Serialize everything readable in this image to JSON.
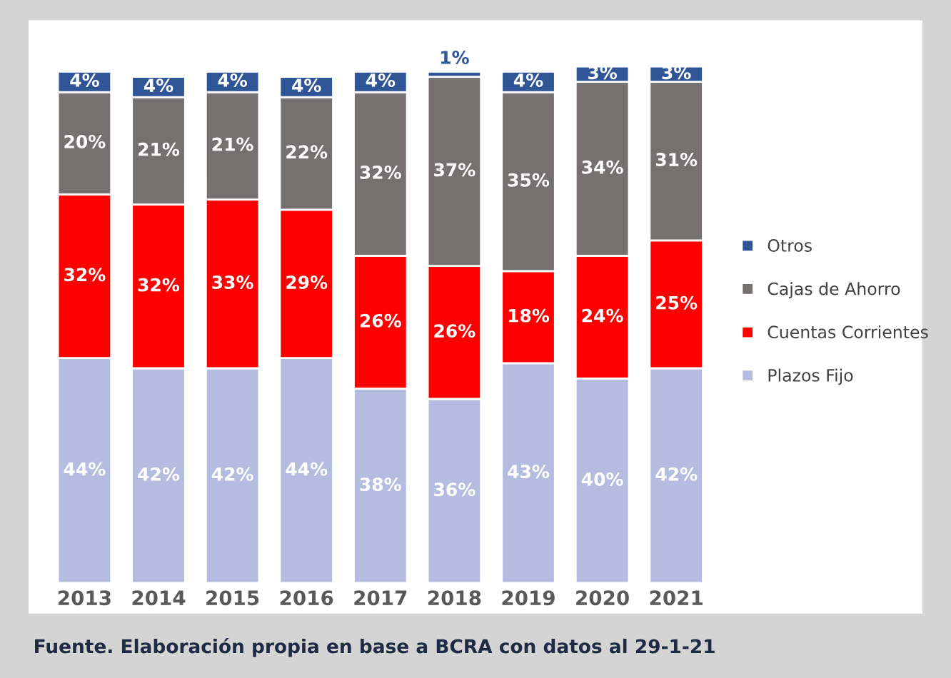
{
  "chart_data": {
    "type": "bar",
    "stacked": true,
    "legend": "right",
    "grid": false,
    "categories": [
      "2013",
      "2014",
      "2015",
      "2016",
      "2017",
      "2018",
      "2019",
      "2020",
      "2021"
    ],
    "series": [
      {
        "name": "Plazos Fijo",
        "color": "#b4bde0",
        "values": [
          44,
          42,
          42,
          44,
          38,
          36,
          43,
          40,
          42
        ],
        "value_labels": [
          "44%",
          "42%",
          "42%",
          "44%",
          "38%",
          "36%",
          "43%",
          "40%",
          "42%"
        ]
      },
      {
        "name": "Cuentas Corrientes",
        "color": "#ff0000",
        "values": [
          32,
          32,
          33,
          29,
          26,
          26,
          18,
          24,
          25
        ],
        "value_labels": [
          "32%",
          "32%",
          "33%",
          "29%",
          "26%",
          "26%",
          "18%",
          "24%",
          "25%"
        ]
      },
      {
        "name": "Cajas de Ahorro",
        "color": "#767171",
        "values": [
          20,
          21,
          21,
          22,
          32,
          37,
          35,
          34,
          31
        ],
        "value_labels": [
          "20%",
          "21%",
          "21%",
          "22%",
          "32%",
          "37%",
          "35%",
          "34%",
          "31%"
        ]
      },
      {
        "name": "Otros",
        "color": "#2f5597",
        "values": [
          4,
          4,
          4,
          4,
          4,
          1,
          4,
          3,
          3
        ],
        "value_labels": [
          "4%",
          "4%",
          "4%",
          "4%",
          "4%",
          "1%",
          "4%",
          "3%",
          "3%"
        ]
      }
    ],
    "annotations": [
      "Fuente. Elaboración propia en base a BCRA con datos al 29-1-21"
    ]
  }
}
